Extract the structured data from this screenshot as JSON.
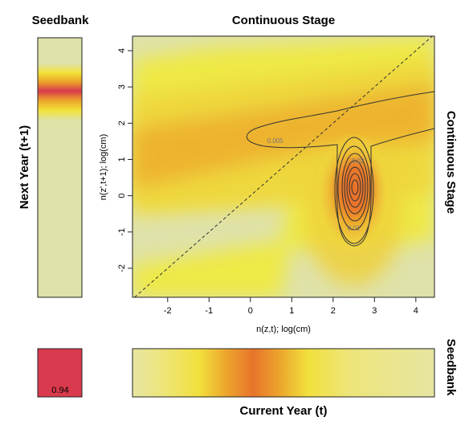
{
  "titles": {
    "seedbank_top": "Seedbank",
    "continuous_top": "Continuous Stage",
    "right_continuous": "Continuous Stage",
    "right_seedbank": "Seedbank",
    "left_ylabel": "Next Year (t+1)",
    "bottom_xlabel": "Current Year (t)"
  },
  "main_plot": {
    "xlabel": "n(z,t); log(cm)",
    "ylabel": "n(z',t+1); log(cm)"
  },
  "bottom_left_cell": {
    "value_text": "0.94"
  },
  "colors": {
    "low": "#dfe2a9",
    "yellow": "#f0ea3a",
    "orange": "#eca22a",
    "deep_orange": "#e8712c",
    "red": "#d93a4d",
    "contour": "#333333",
    "contour_label": "#777777"
  },
  "chart_data": {
    "type": "heatmap",
    "title": "Continuous Stage",
    "xlabel": "n(z,t); log(cm)",
    "ylabel": "n(z',t+1); log(cm)",
    "xlim": [
      -2.85,
      4.45
    ],
    "ylim": [
      -2.8,
      4.4
    ],
    "x_ticks": [
      -2,
      -1,
      0,
      1,
      2,
      3,
      4
    ],
    "y_ticks": [
      -2,
      -1,
      0,
      1,
      2,
      3,
      4
    ],
    "reference_line": "y = x (dashed)",
    "contour_labels": [
      {
        "text": "0.005",
        "x": 0.6,
        "y": 1.45
      },
      {
        "text": "0.02",
        "x": 2.6,
        "y": 0.9
      },
      {
        "text": "0.01",
        "x": 2.5,
        "y": -0.95
      }
    ],
    "peak": {
      "x": 2.5,
      "y": 0.3
    },
    "seedbank_to_seedbank": 0.94
  }
}
